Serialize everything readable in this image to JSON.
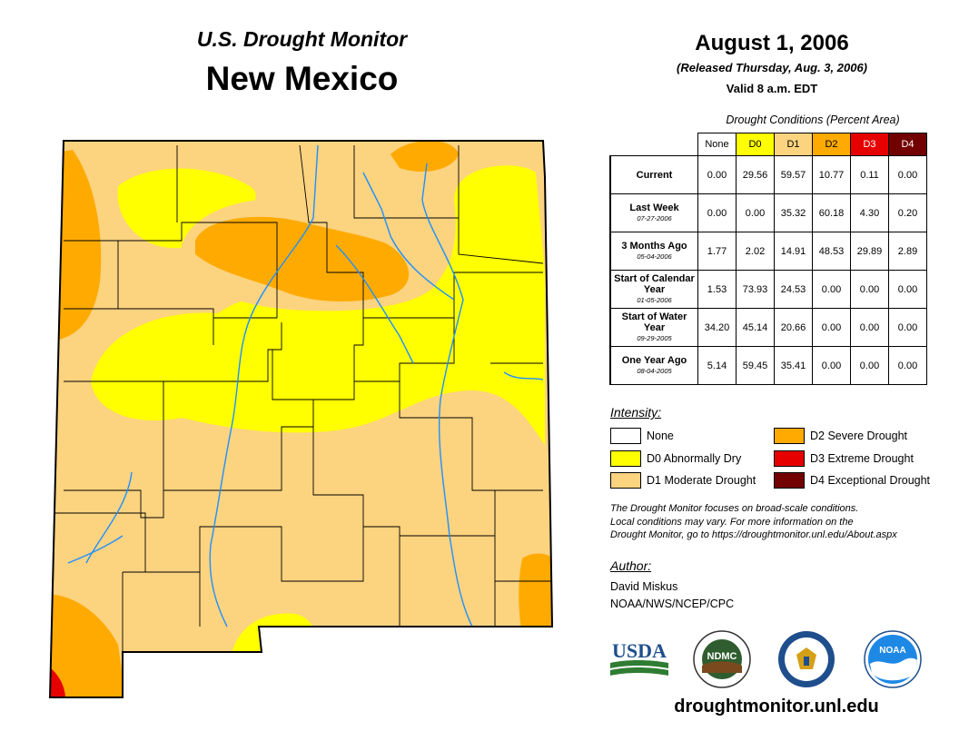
{
  "header": {
    "subtitle": "U.S. Drought Monitor",
    "state": "New Mexico",
    "date": "August 1, 2006",
    "released": "(Released Thursday, Aug. 3, 2006)",
    "valid": "Valid 8 a.m. EDT"
  },
  "table": {
    "title": "Drought Conditions (Percent Area)",
    "columns": [
      "None",
      "D0",
      "D1",
      "D2",
      "D3",
      "D4"
    ],
    "column_colors": [
      "#ffffff",
      "#ffff00",
      "#fcd37f",
      "#ffaa00",
      "#e60000",
      "#730000"
    ],
    "rows": [
      {
        "label": "Current",
        "date": "",
        "values": [
          "0.00",
          "29.56",
          "59.57",
          "10.77",
          "0.11",
          "0.00"
        ]
      },
      {
        "label": "Last Week",
        "date": "07-27-2006",
        "values": [
          "0.00",
          "0.00",
          "35.32",
          "60.18",
          "4.30",
          "0.20"
        ]
      },
      {
        "label": "3 Months Ago",
        "date": "05-04-2006",
        "values": [
          "1.77",
          "2.02",
          "14.91",
          "48.53",
          "29.89",
          "2.89"
        ]
      },
      {
        "label": "Start of Calendar Year",
        "date": "01-05-2006",
        "values": [
          "1.53",
          "73.93",
          "24.53",
          "0.00",
          "0.00",
          "0.00"
        ]
      },
      {
        "label": "Start of Water Year",
        "date": "09-29-2005",
        "values": [
          "34.20",
          "45.14",
          "20.66",
          "0.00",
          "0.00",
          "0.00"
        ]
      },
      {
        "label": "One Year Ago",
        "date": "08-04-2005",
        "values": [
          "5.14",
          "59.45",
          "35.41",
          "0.00",
          "0.00",
          "0.00"
        ]
      }
    ]
  },
  "legend": {
    "title": "Intensity:",
    "items": [
      {
        "label": "None",
        "color": "#ffffff"
      },
      {
        "label": "D0 Abnormally Dry",
        "color": "#ffff00"
      },
      {
        "label": "D1 Moderate Drought",
        "color": "#fcd37f"
      },
      {
        "label": "D2 Severe Drought",
        "color": "#ffaa00"
      },
      {
        "label": "D3 Extreme Drought",
        "color": "#e60000"
      },
      {
        "label": "D4 Exceptional Drought",
        "color": "#730000"
      }
    ]
  },
  "note": {
    "line1": "The Drought Monitor focuses on broad-scale conditions.",
    "line2": "Local conditions may vary. For more information on the",
    "line3": "Drought Monitor, go to https://droughtmonitor.unl.edu/About.aspx"
  },
  "author": {
    "title": "Author:",
    "name": "David Miskus",
    "org": "NOAA/NWS/NCEP/CPC"
  },
  "logos": {
    "usda": "USDA",
    "ndmc": "NDMC",
    "noaa": "NOAA"
  },
  "footer_url": "droughtmonitor.unl.edu"
}
